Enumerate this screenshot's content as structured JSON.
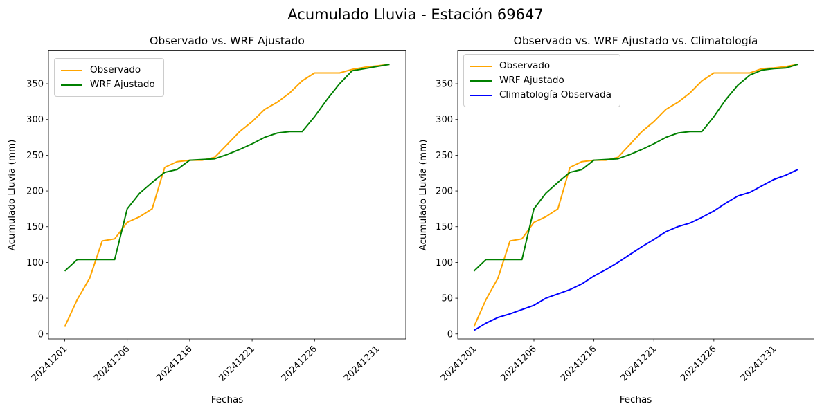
{
  "figure": {
    "title": "Acumulado Lluvia - Estación 69647"
  },
  "chart_data": [
    {
      "type": "line",
      "title": "Observado vs. WRF Ajustado",
      "xlabel": "Fechas",
      "ylabel": "Acumulado Lluvia (mm)",
      "x_tick_indices": [
        0,
        5,
        10,
        15,
        20,
        25
      ],
      "x_tick_labels": [
        "20241201",
        "20241206",
        "20241216",
        "20241221",
        "20241226",
        "20241231"
      ],
      "y_ticks": [
        0,
        50,
        100,
        150,
        200,
        250,
        300,
        350
      ],
      "ylim": [
        -7,
        396
      ],
      "n_points": 27,
      "grid": false,
      "legend_position": "upper left",
      "legend_labels": [
        "Observado",
        "WRF Ajustado"
      ],
      "series": [
        {
          "name": "Observado",
          "color": "#FFA500",
          "values": [
            10,
            48,
            78,
            130,
            133,
            156,
            164,
            175,
            233,
            241,
            243,
            243,
            247,
            265,
            283,
            297,
            314,
            324,
            337,
            354,
            365,
            365,
            365,
            370,
            373,
            375,
            377
          ]
        },
        {
          "name": "WRF Ajustado",
          "color": "#008000",
          "values": [
            88,
            104,
            104,
            104,
            104,
            175,
            197,
            212,
            226,
            230,
            243,
            244,
            245,
            251,
            258,
            266,
            275,
            281,
            283,
            283,
            304,
            328,
            350,
            368,
            371,
            374,
            377
          ]
        }
      ]
    },
    {
      "type": "line",
      "title": "Observado vs. WRF Ajustado vs. Climatología",
      "xlabel": "Fechas",
      "ylabel": "Acumulado Lluvia (mm)",
      "x_tick_indices": [
        0,
        5,
        10,
        15,
        20,
        25
      ],
      "x_tick_labels": [
        "20241201",
        "20241206",
        "20241216",
        "20241221",
        "20241226",
        "20241231"
      ],
      "y_ticks": [
        0,
        50,
        100,
        150,
        200,
        250,
        300,
        350
      ],
      "ylim": [
        -7,
        396
      ],
      "n_points": 28,
      "grid": false,
      "legend_position": "upper left",
      "legend_labels": [
        "Observado",
        "WRF Ajustado",
        "Climatología Observada"
      ],
      "series": [
        {
          "name": "Observado",
          "color": "#FFA500",
          "values": [
            10,
            48,
            78,
            130,
            133,
            156,
            164,
            175,
            233,
            241,
            243,
            243,
            247,
            265,
            283,
            297,
            314,
            324,
            337,
            354,
            365,
            365,
            365,
            365,
            371,
            372,
            374,
            377
          ]
        },
        {
          "name": "WRF Ajustado",
          "color": "#008000",
          "values": [
            88,
            104,
            104,
            104,
            104,
            175,
            197,
            212,
            226,
            230,
            243,
            244,
            245,
            251,
            258,
            266,
            275,
            281,
            283,
            283,
            304,
            328,
            348,
            362,
            369,
            371,
            372,
            377
          ]
        },
        {
          "name": "Climatología Observada",
          "color": "#0000FF",
          "values": [
            5,
            15,
            23,
            28,
            34,
            40,
            50,
            56,
            62,
            70,
            81,
            90,
            100,
            111,
            122,
            132,
            143,
            150,
            155,
            163,
            172,
            183,
            193,
            198,
            207,
            216,
            222,
            230
          ]
        }
      ]
    }
  ]
}
